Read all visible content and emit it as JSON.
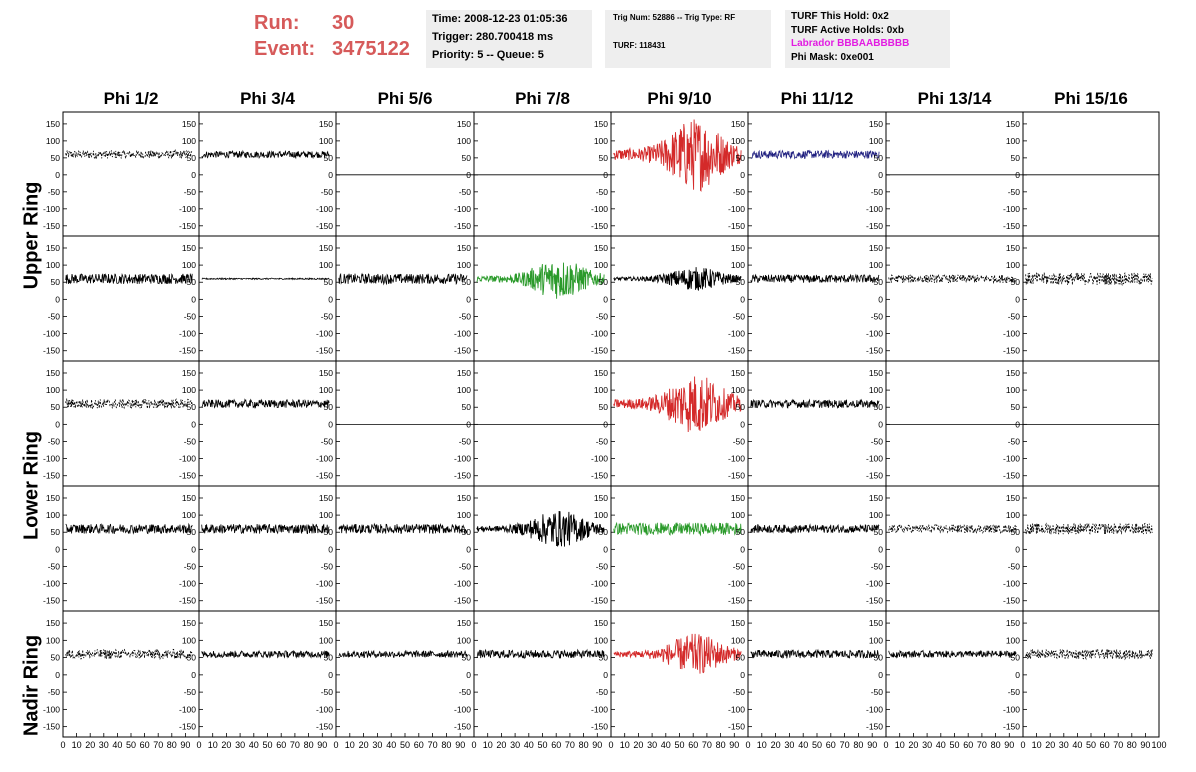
{
  "header": {
    "run_label": "Run:",
    "run_value": "30",
    "event_label": "Event:",
    "event_value": "3475122",
    "time": "Time: 2008-12-23 01:05:36",
    "trigger": "Trigger: 280.700418 ms",
    "priority": "Priority: 5 -- Queue: 5",
    "trig_num": "Trig Num: 52886 -- Trig Type: RF",
    "turf": "TURF: 118431",
    "turf_this_hold": "TURF This Hold: 0x2",
    "turf_active_holds": "TURF Active Holds: 0xb",
    "labrador": "Labrador BBBAABBBBB",
    "phi_mask": "Phi Mask: 0xe001"
  },
  "colors": {
    "run_text": "#d65a5a",
    "labrador_text": "#e21ce2",
    "trace_black": "#000000",
    "trace_red": "#d42a2a",
    "trace_green": "#2a9a2a",
    "trace_blue": "#202080",
    "info_box_bg": "#eeeeee"
  },
  "chart_data": {
    "type": "line",
    "columns": [
      "Phi 1/2",
      "Phi 3/4",
      "Phi 5/6",
      "Phi 7/8",
      "Phi 9/10",
      "Phi 11/12",
      "Phi 13/14",
      "Phi 15/16"
    ],
    "ring_labels": [
      "Upper Ring",
      "Lower Ring",
      "Nadir Ring"
    ],
    "rows": 5,
    "xlim": [
      0,
      100
    ],
    "ylim": [
      -180,
      185
    ],
    "ytick_values": [
      -150,
      -100,
      -50,
      0,
      50,
      100,
      150
    ],
    "ytick_labels": [
      "-150",
      "-100",
      "-50",
      "0",
      "50",
      "100",
      "150"
    ],
    "xtick_values": [
      0,
      10,
      20,
      30,
      40,
      50,
      60,
      70,
      80,
      90,
      100
    ],
    "xtick_labels": [
      "0",
      "10",
      "20",
      "30",
      "40",
      "50",
      "60",
      "70",
      "80",
      "90",
      "100"
    ],
    "trace_baseline": 60,
    "traces": [
      [
        {
          "style": "dashed",
          "color": "black",
          "amp": 12
        },
        {
          "style": "solid",
          "color": "black",
          "amp": 10
        },
        {
          "style": "flat",
          "color": "black",
          "amp": 0
        },
        {
          "style": "flat",
          "color": "black",
          "amp": 0
        },
        {
          "style": "burst",
          "color": "red",
          "amp": 110
        },
        {
          "style": "solid",
          "color": "blue",
          "amp": 12
        },
        {
          "style": "flat",
          "color": "black",
          "amp": 0
        },
        {
          "style": "flat",
          "color": "black",
          "amp": 0
        }
      ],
      [
        {
          "style": "solid",
          "color": "black",
          "amp": 15
        },
        {
          "style": "thin",
          "color": "black",
          "amp": 2
        },
        {
          "style": "solid",
          "color": "black",
          "amp": 15
        },
        {
          "style": "burst",
          "color": "green",
          "amp": 60
        },
        {
          "style": "burst",
          "color": "black",
          "amp": 35
        },
        {
          "style": "solid",
          "color": "black",
          "amp": 12
        },
        {
          "style": "dashed",
          "color": "black",
          "amp": 12
        },
        {
          "style": "dashed",
          "color": "black",
          "amp": 18
        }
      ],
      [
        {
          "style": "dashed",
          "color": "black",
          "amp": 14
        },
        {
          "style": "solid",
          "color": "black",
          "amp": 12
        },
        {
          "style": "flat",
          "color": "black",
          "amp": 0
        },
        {
          "style": "flat",
          "color": "black",
          "amp": 0
        },
        {
          "style": "burst",
          "color": "red",
          "amp": 90
        },
        {
          "style": "solid",
          "color": "black",
          "amp": 12
        },
        {
          "style": "flat",
          "color": "black",
          "amp": 0
        },
        {
          "style": "flat",
          "color": "black",
          "amp": 0
        }
      ],
      [
        {
          "style": "solid",
          "color": "black",
          "amp": 14
        },
        {
          "style": "solid",
          "color": "black",
          "amp": 14
        },
        {
          "style": "solid",
          "color": "black",
          "amp": 14
        },
        {
          "style": "burst",
          "color": "black",
          "amp": 55
        },
        {
          "style": "solid",
          "color": "green",
          "amp": 18
        },
        {
          "style": "solid",
          "color": "black",
          "amp": 12
        },
        {
          "style": "dashed",
          "color": "black",
          "amp": 12
        },
        {
          "style": "dashed",
          "color": "black",
          "amp": 16
        }
      ],
      [
        {
          "style": "dashed",
          "color": "black",
          "amp": 14
        },
        {
          "style": "solid",
          "color": "black",
          "amp": 10
        },
        {
          "style": "solid",
          "color": "black",
          "amp": 10
        },
        {
          "style": "solid",
          "color": "black",
          "amp": 12
        },
        {
          "style": "burst",
          "color": "red",
          "amp": 60
        },
        {
          "style": "solid",
          "color": "black",
          "amp": 12
        },
        {
          "style": "solid",
          "color": "black",
          "amp": 10
        },
        {
          "style": "dashed",
          "color": "black",
          "amp": 14
        }
      ]
    ]
  }
}
